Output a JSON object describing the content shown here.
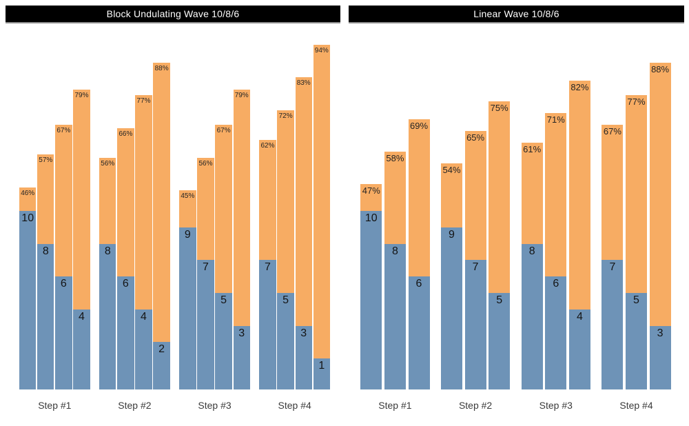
{
  "colors": {
    "reps_fill": "#6E93B7",
    "intensity_fill": "#F7AC63",
    "title_bg": "#000000",
    "title_text": "#ffffff",
    "axis_label_text": "#3a3a3a",
    "bar_label_text": "#141414",
    "background": "#ffffff"
  },
  "chart_data": [
    {
      "type": "bar",
      "variant": "stacked-reps-and-intensity",
      "title": "Block Undulating Wave 10/8/6",
      "categories": [
        "Step #1",
        "Step #2",
        "Step #3",
        "Step #4"
      ],
      "axes_visible": false,
      "grid": false,
      "legend": false,
      "groups": [
        {
          "bars": [
            {
              "reps": 10,
              "reps_label": "10",
              "pct": 46,
              "pct_label": "46%"
            },
            {
              "reps": 8,
              "reps_label": "8",
              "pct": 57,
              "pct_label": "57%"
            },
            {
              "reps": 6,
              "reps_label": "6",
              "pct": 67,
              "pct_label": "67%"
            },
            {
              "reps": 4,
              "reps_label": "4",
              "pct": 79,
              "pct_label": "79%"
            }
          ]
        },
        {
          "bars": [
            {
              "reps": 8,
              "reps_label": "8",
              "pct": 56,
              "pct_label": "56%"
            },
            {
              "reps": 6,
              "reps_label": "6",
              "pct": 66,
              "pct_label": "66%"
            },
            {
              "reps": 4,
              "reps_label": "4",
              "pct": 77,
              "pct_label": "77%"
            },
            {
              "reps": 2,
              "reps_label": "2",
              "pct": 88,
              "pct_label": "88%"
            }
          ]
        },
        {
          "bars": [
            {
              "reps": 9,
              "reps_label": "9",
              "pct": 45,
              "pct_label": "45%"
            },
            {
              "reps": 7,
              "reps_label": "7",
              "pct": 56,
              "pct_label": "56%"
            },
            {
              "reps": 5,
              "reps_label": "5",
              "pct": 67,
              "pct_label": "67%"
            },
            {
              "reps": 3,
              "reps_label": "3",
              "pct": 79,
              "pct_label": "79%"
            }
          ]
        },
        {
          "bars": [
            {
              "reps": 7,
              "reps_label": "7",
              "pct": 62,
              "pct_label": "62%"
            },
            {
              "reps": 5,
              "reps_label": "5",
              "pct": 72,
              "pct_label": "72%"
            },
            {
              "reps": 3,
              "reps_label": "3",
              "pct": 83,
              "pct_label": "83%"
            },
            {
              "reps": 1,
              "reps_label": "1",
              "pct": 94,
              "pct_label": "94%"
            }
          ]
        }
      ]
    },
    {
      "type": "bar",
      "variant": "stacked-reps-and-intensity",
      "title": "Linear Wave 10/8/6",
      "categories": [
        "Step #1",
        "Step #2",
        "Step #3",
        "Step #4"
      ],
      "axes_visible": false,
      "grid": false,
      "legend": false,
      "groups": [
        {
          "bars": [
            {
              "reps": 10,
              "reps_label": "10",
              "pct": 47,
              "pct_label": "47%"
            },
            {
              "reps": 8,
              "reps_label": "8",
              "pct": 58,
              "pct_label": "58%"
            },
            {
              "reps": 6,
              "reps_label": "6",
              "pct": 69,
              "pct_label": "69%"
            }
          ]
        },
        {
          "bars": [
            {
              "reps": 9,
              "reps_label": "9",
              "pct": 54,
              "pct_label": "54%"
            },
            {
              "reps": 7,
              "reps_label": "7",
              "pct": 65,
              "pct_label": "65%"
            },
            {
              "reps": 5,
              "reps_label": "5",
              "pct": 75,
              "pct_label": "75%"
            }
          ]
        },
        {
          "bars": [
            {
              "reps": 8,
              "reps_label": "8",
              "pct": 61,
              "pct_label": "61%"
            },
            {
              "reps": 6,
              "reps_label": "6",
              "pct": 71,
              "pct_label": "71%"
            },
            {
              "reps": 4,
              "reps_label": "4",
              "pct": 82,
              "pct_label": "82%"
            }
          ]
        },
        {
          "bars": [
            {
              "reps": 7,
              "reps_label": "7",
              "pct": 67,
              "pct_label": "67%"
            },
            {
              "reps": 5,
              "reps_label": "5",
              "pct": 77,
              "pct_label": "77%"
            },
            {
              "reps": 3,
              "reps_label": "3",
              "pct": 88,
              "pct_label": "88%"
            }
          ]
        }
      ]
    }
  ]
}
